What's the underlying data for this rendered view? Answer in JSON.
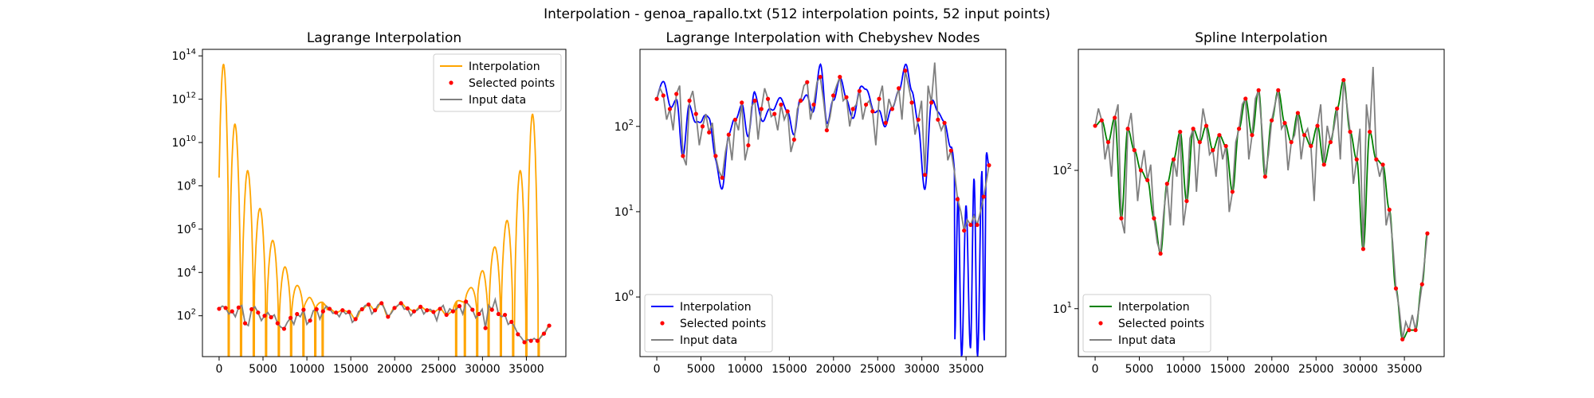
{
  "figure": {
    "suptitle": "Interpolation - genoa_rapallo.txt (512 interpolation points, 52 input points)"
  },
  "colors": {
    "lagrange": "#ffa500",
    "chebyshev": "#0000ff",
    "spline": "#008000",
    "input": "#808080",
    "points": "#ff0000"
  },
  "chart_data": [
    {
      "type": "line",
      "title": "Lagrange Interpolation",
      "yscale": "log",
      "xlim": [
        -1900,
        39500
      ],
      "ylim": [
        1.3,
        200000000000000.0
      ],
      "xticks": [
        0,
        5000,
        10000,
        15000,
        20000,
        25000,
        30000,
        35000
      ],
      "yticks": [
        100,
        10000,
        1000000,
        100000000,
        10000000000,
        1000000000000,
        100000000000000
      ],
      "ytick_labels": [
        [
          "10",
          "2"
        ],
        [
          "10",
          "4"
        ],
        [
          "10",
          "6"
        ],
        [
          "10",
          "8"
        ],
        [
          "10",
          "10"
        ],
        [
          "10",
          "12"
        ],
        [
          "10",
          "14"
        ]
      ],
      "legend": {
        "loc": "upper right",
        "entries": [
          "Interpolation",
          "Selected points",
          "Input data"
        ]
      },
      "series_style": "lagrange",
      "interp_type": "lagrange",
      "interp_params": {
        "left_peaks": [
          [
            500,
            40000000000000.0
          ],
          [
            1800,
            70000000000.0
          ],
          [
            3250,
            500000000.0
          ],
          [
            4650,
            9000000.0
          ],
          [
            6100,
            300000.0
          ],
          [
            7500,
            18000.0
          ],
          [
            8900,
            2500.0
          ],
          [
            10300,
            700
          ],
          [
            11650,
            420
          ]
        ],
        "right_peaks": [
          [
            27300,
            500
          ],
          [
            28700,
            2000
          ],
          [
            30000,
            12000.0
          ],
          [
            31400,
            150000.0
          ],
          [
            32800,
            2500000.0
          ],
          [
            34300,
            500000000.0
          ],
          [
            35700,
            200000000000.0
          ]
        ],
        "crossings": [
          1100,
          2500,
          3950,
          5350,
          6800,
          8200,
          9600,
          10950,
          11800,
          27000,
          28000,
          29400,
          30700,
          32100,
          33500,
          35000,
          36400
        ]
      }
    },
    {
      "type": "line",
      "title": "Lagrange Interpolation with Chebyshev Nodes",
      "yscale": "log",
      "xlim": [
        -1900,
        39500
      ],
      "ylim": [
        0.2,
        800
      ],
      "xticks": [
        0,
        5000,
        10000,
        15000,
        20000,
        25000,
        30000,
        35000
      ],
      "yticks": [
        1,
        10,
        100
      ],
      "ytick_labels": [
        [
          "10",
          "0"
        ],
        [
          "10",
          "1"
        ],
        [
          "10",
          "2"
        ]
      ],
      "legend": {
        "loc": "lower left",
        "entries": [
          "Interpolation",
          "Selected points",
          "Input data"
        ]
      },
      "series_style": "chebyshev",
      "interp_type": "chebyshev",
      "interp_params": {
        "dip_start": 33500,
        "dip_values": [
          [
            33700,
            0.3
          ],
          [
            34100,
            15
          ],
          [
            34500,
            0.2
          ],
          [
            35000,
            12
          ],
          [
            35500,
            0.25
          ],
          [
            35900,
            25
          ],
          [
            36300,
            0.2
          ],
          [
            36800,
            30
          ],
          [
            37050,
            0.3
          ],
          [
            37300,
            50
          ],
          [
            37600,
            35
          ]
        ]
      }
    },
    {
      "type": "line",
      "title": "Spline Interpolation",
      "yscale": "log",
      "xlim": [
        -1900,
        39500
      ],
      "ylim": [
        4.5,
        750
      ],
      "xticks": [
        0,
        5000,
        10000,
        15000,
        20000,
        25000,
        30000,
        35000
      ],
      "yticks": [
        10,
        100
      ],
      "ytick_labels": [
        [
          "10",
          "1"
        ],
        [
          "10",
          "2"
        ]
      ],
      "legend": {
        "loc": "lower left",
        "entries": [
          "Interpolation",
          "Selected points",
          "Input data"
        ]
      },
      "series_style": "spline",
      "interp_type": "spline",
      "interp_params": {}
    }
  ],
  "selected_points": {
    "x": [
      0,
      740,
      1480,
      2220,
      2960,
      3700,
      4440,
      5180,
      5920,
      6660,
      7400,
      8140,
      8880,
      9620,
      10360,
      11100,
      11840,
      12580,
      13320,
      14060,
      14800,
      15540,
      16280,
      17020,
      17760,
      18500,
      19240,
      19980,
      20720,
      21460,
      22200,
      22940,
      23680,
      24420,
      25160,
      25900,
      26640,
      27380,
      28120,
      28860,
      29600,
      30340,
      31080,
      31820,
      32560,
      33300,
      34040,
      34780,
      35520,
      36260,
      37000,
      37600
    ],
    "y": [
      210,
      230,
      160,
      240,
      45,
      200,
      140,
      100,
      85,
      45,
      25,
      80,
      120,
      190,
      60,
      200,
      160,
      210,
      140,
      180,
      150,
      70,
      200,
      330,
      180,
      380,
      90,
      230,
      380,
      220,
      160,
      260,
      180,
      150,
      210,
      110,
      160,
      280,
      450,
      190,
      120,
      27,
      190,
      120,
      110,
      52,
      14,
      6,
      7,
      7,
      15,
      35
    ]
  },
  "input_data": {
    "x": [
      0,
      370,
      740,
      1110,
      1480,
      1850,
      2220,
      2590,
      2960,
      3330,
      3700,
      4070,
      4440,
      4810,
      5180,
      5550,
      5920,
      6290,
      6660,
      7030,
      7400,
      7770,
      8140,
      8510,
      8880,
      9250,
      9620,
      9990,
      10360,
      10730,
      11100,
      11470,
      11840,
      12210,
      12580,
      12950,
      13320,
      13690,
      14060,
      14430,
      14800,
      15170,
      15540,
      15910,
      16280,
      16650,
      17020,
      17390,
      17760,
      18130,
      18500,
      18870,
      19240,
      19610,
      19980,
      20350,
      20720,
      21090,
      21460,
      21830,
      22200,
      22570,
      22940,
      23310,
      23680,
      24050,
      24420,
      24790,
      25160,
      25530,
      25900,
      26270,
      26640,
      27010,
      27380,
      27750,
      28120,
      28490,
      28860,
      29230,
      29600,
      29970,
      30340,
      30710,
      31080,
      31450,
      31820,
      32190,
      32560,
      32930,
      33300,
      33670,
      34040,
      34410,
      34780,
      35150,
      35520,
      35890,
      36260,
      36630,
      37000,
      37370,
      37600
    ],
    "y": [
      210,
      280,
      230,
      120,
      160,
      90,
      240,
      300,
      45,
      35,
      200,
      260,
      140,
      60,
      100,
      140,
      85,
      110,
      45,
      30,
      25,
      50,
      80,
      40,
      120,
      90,
      190,
      40,
      60,
      170,
      200,
      70,
      160,
      280,
      210,
      130,
      140,
      90,
      180,
      120,
      150,
      50,
      70,
      160,
      200,
      300,
      330,
      120,
      180,
      330,
      380,
      200,
      90,
      130,
      230,
      300,
      380,
      200,
      220,
      100,
      160,
      180,
      260,
      120,
      180,
      200,
      150,
      60,
      210,
      300,
      110,
      210,
      160,
      200,
      280,
      120,
      450,
      300,
      190,
      80,
      120,
      200,
      27,
      300,
      190,
      560,
      120,
      90,
      110,
      40,
      52,
      30,
      14,
      10,
      6,
      8,
      7,
      9,
      7,
      10,
      15,
      25,
      35
    ]
  }
}
